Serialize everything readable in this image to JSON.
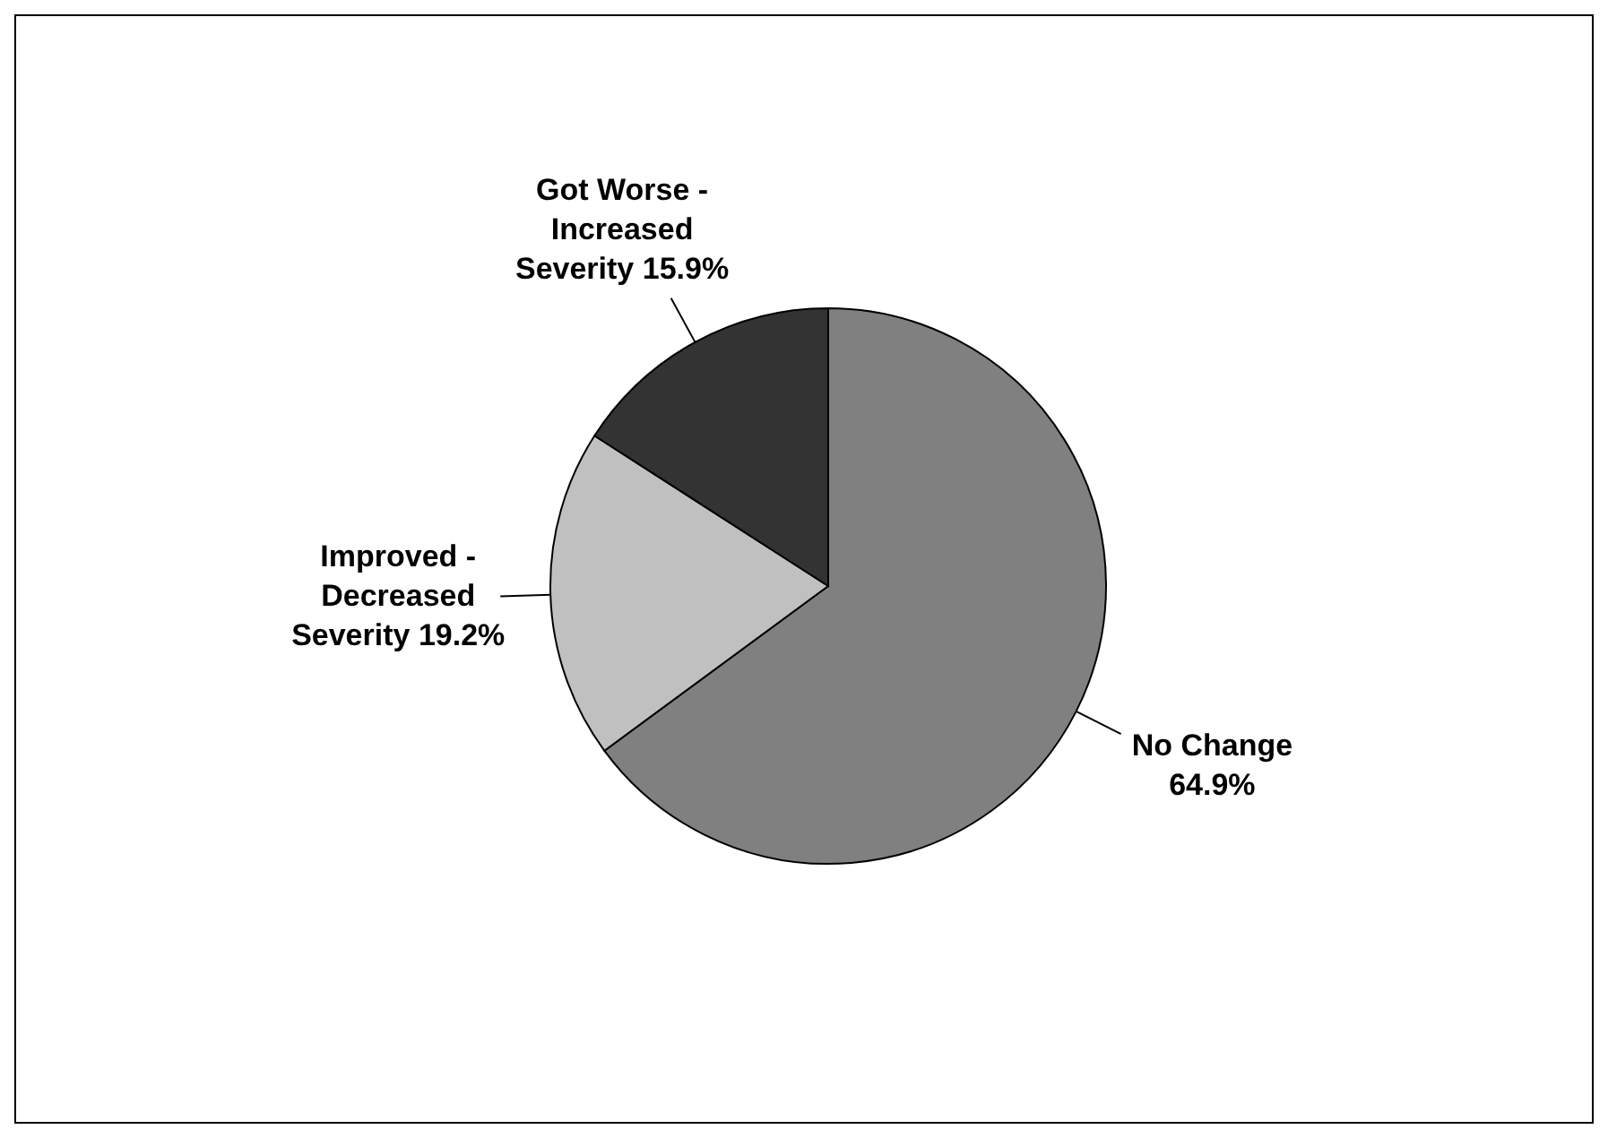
{
  "chart_data": {
    "type": "pie",
    "categories": [
      "No Change",
      "Improved - Decreased Severity",
      "Got Worse - Increased Severity"
    ],
    "values": [
      64.9,
      19.2,
      15.9
    ],
    "colors": [
      "#808080",
      "#c0c0c0",
      "#333333"
    ],
    "value_labels": [
      "64.9%",
      "19.2%",
      "15.9%"
    ],
    "legend": false
  }
}
